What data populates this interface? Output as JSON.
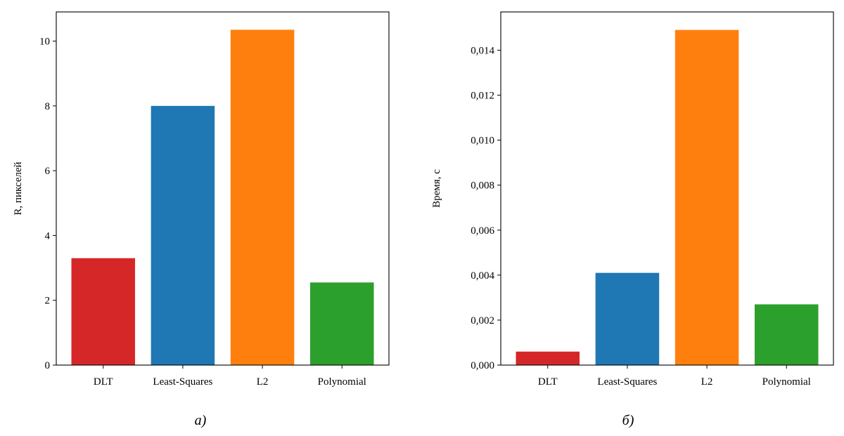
{
  "chart_data": [
    {
      "type": "bar",
      "caption": "а)",
      "ylabel": "R, пикселей",
      "categories": [
        "DLT",
        "Least-Squares",
        "L2",
        "Polynomial"
      ],
      "values": [
        3.3,
        8.0,
        10.35,
        2.55
      ],
      "colors": [
        "#d62728",
        "#1f77b4",
        "#ff7f0e",
        "#2ca02c"
      ],
      "ylim": [
        0,
        10.9
      ],
      "yticks": [
        0,
        2,
        4,
        6,
        8,
        10
      ],
      "ytick_labels": [
        "0",
        "2",
        "4",
        "6",
        "8",
        "10"
      ],
      "grid": false,
      "legend": "none"
    },
    {
      "type": "bar",
      "caption": "б)",
      "ylabel": "Время, с",
      "categories": [
        "DLT",
        "Least-Squares",
        "L2",
        "Polynomial"
      ],
      "values": [
        0.0006,
        0.0041,
        0.0149,
        0.0027
      ],
      "colors": [
        "#d62728",
        "#1f77b4",
        "#ff7f0e",
        "#2ca02c"
      ],
      "ylim": [
        0,
        0.0157
      ],
      "yticks": [
        0,
        0.002,
        0.004,
        0.006,
        0.008,
        0.01,
        0.012,
        0.014
      ],
      "ytick_labels": [
        "0,000",
        "0,002",
        "0,004",
        "0,006",
        "0,008",
        "0,010",
        "0,012",
        "0,014"
      ],
      "grid": false,
      "legend": "none"
    }
  ]
}
